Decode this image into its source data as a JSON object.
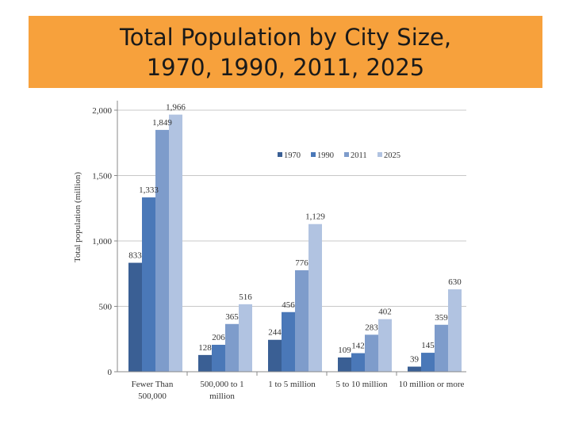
{
  "slide": {
    "title_line1": "Total Population by City Size,",
    "title_line2": "1970, 1990, 2011, 2025"
  },
  "colors": {
    "banner": "#f7a13c",
    "series": [
      "#3a5f94",
      "#4a78b8",
      "#7e9ccb",
      "#b1c3e1"
    ]
  },
  "chart_data": {
    "type": "bar",
    "ylabel": "Total population (million)",
    "ylim": [
      0,
      2000
    ],
    "yticks": [
      0,
      500,
      1000,
      1500,
      2000
    ],
    "ytick_labels": [
      "0",
      "500",
      "1,000",
      "1,500",
      "2,000"
    ],
    "grid": true,
    "legend_position": "top-right",
    "categories": [
      [
        "Fewer Than",
        "500,000"
      ],
      [
        "500,000 to 1",
        "million"
      ],
      [
        "1 to 5 million"
      ],
      [
        "5 to 10 million"
      ],
      [
        "10 million or more"
      ]
    ],
    "series": [
      {
        "name": "1970",
        "values": [
          833,
          128,
          244,
          109,
          39
        ],
        "labels": [
          "833",
          "128",
          "244",
          "109",
          "39"
        ]
      },
      {
        "name": "1990",
        "values": [
          1333,
          206,
          456,
          142,
          145
        ],
        "labels": [
          "1,333",
          "206",
          "456",
          "142",
          "145"
        ]
      },
      {
        "name": "2011",
        "values": [
          1849,
          365,
          776,
          283,
          359
        ],
        "labels": [
          "1,849",
          "365",
          "776",
          "283",
          "359"
        ]
      },
      {
        "name": "2025",
        "values": [
          1966,
          516,
          1129,
          402,
          630
        ],
        "labels": [
          "1,966",
          "516",
          "1,129",
          "402",
          "630"
        ]
      }
    ]
  }
}
